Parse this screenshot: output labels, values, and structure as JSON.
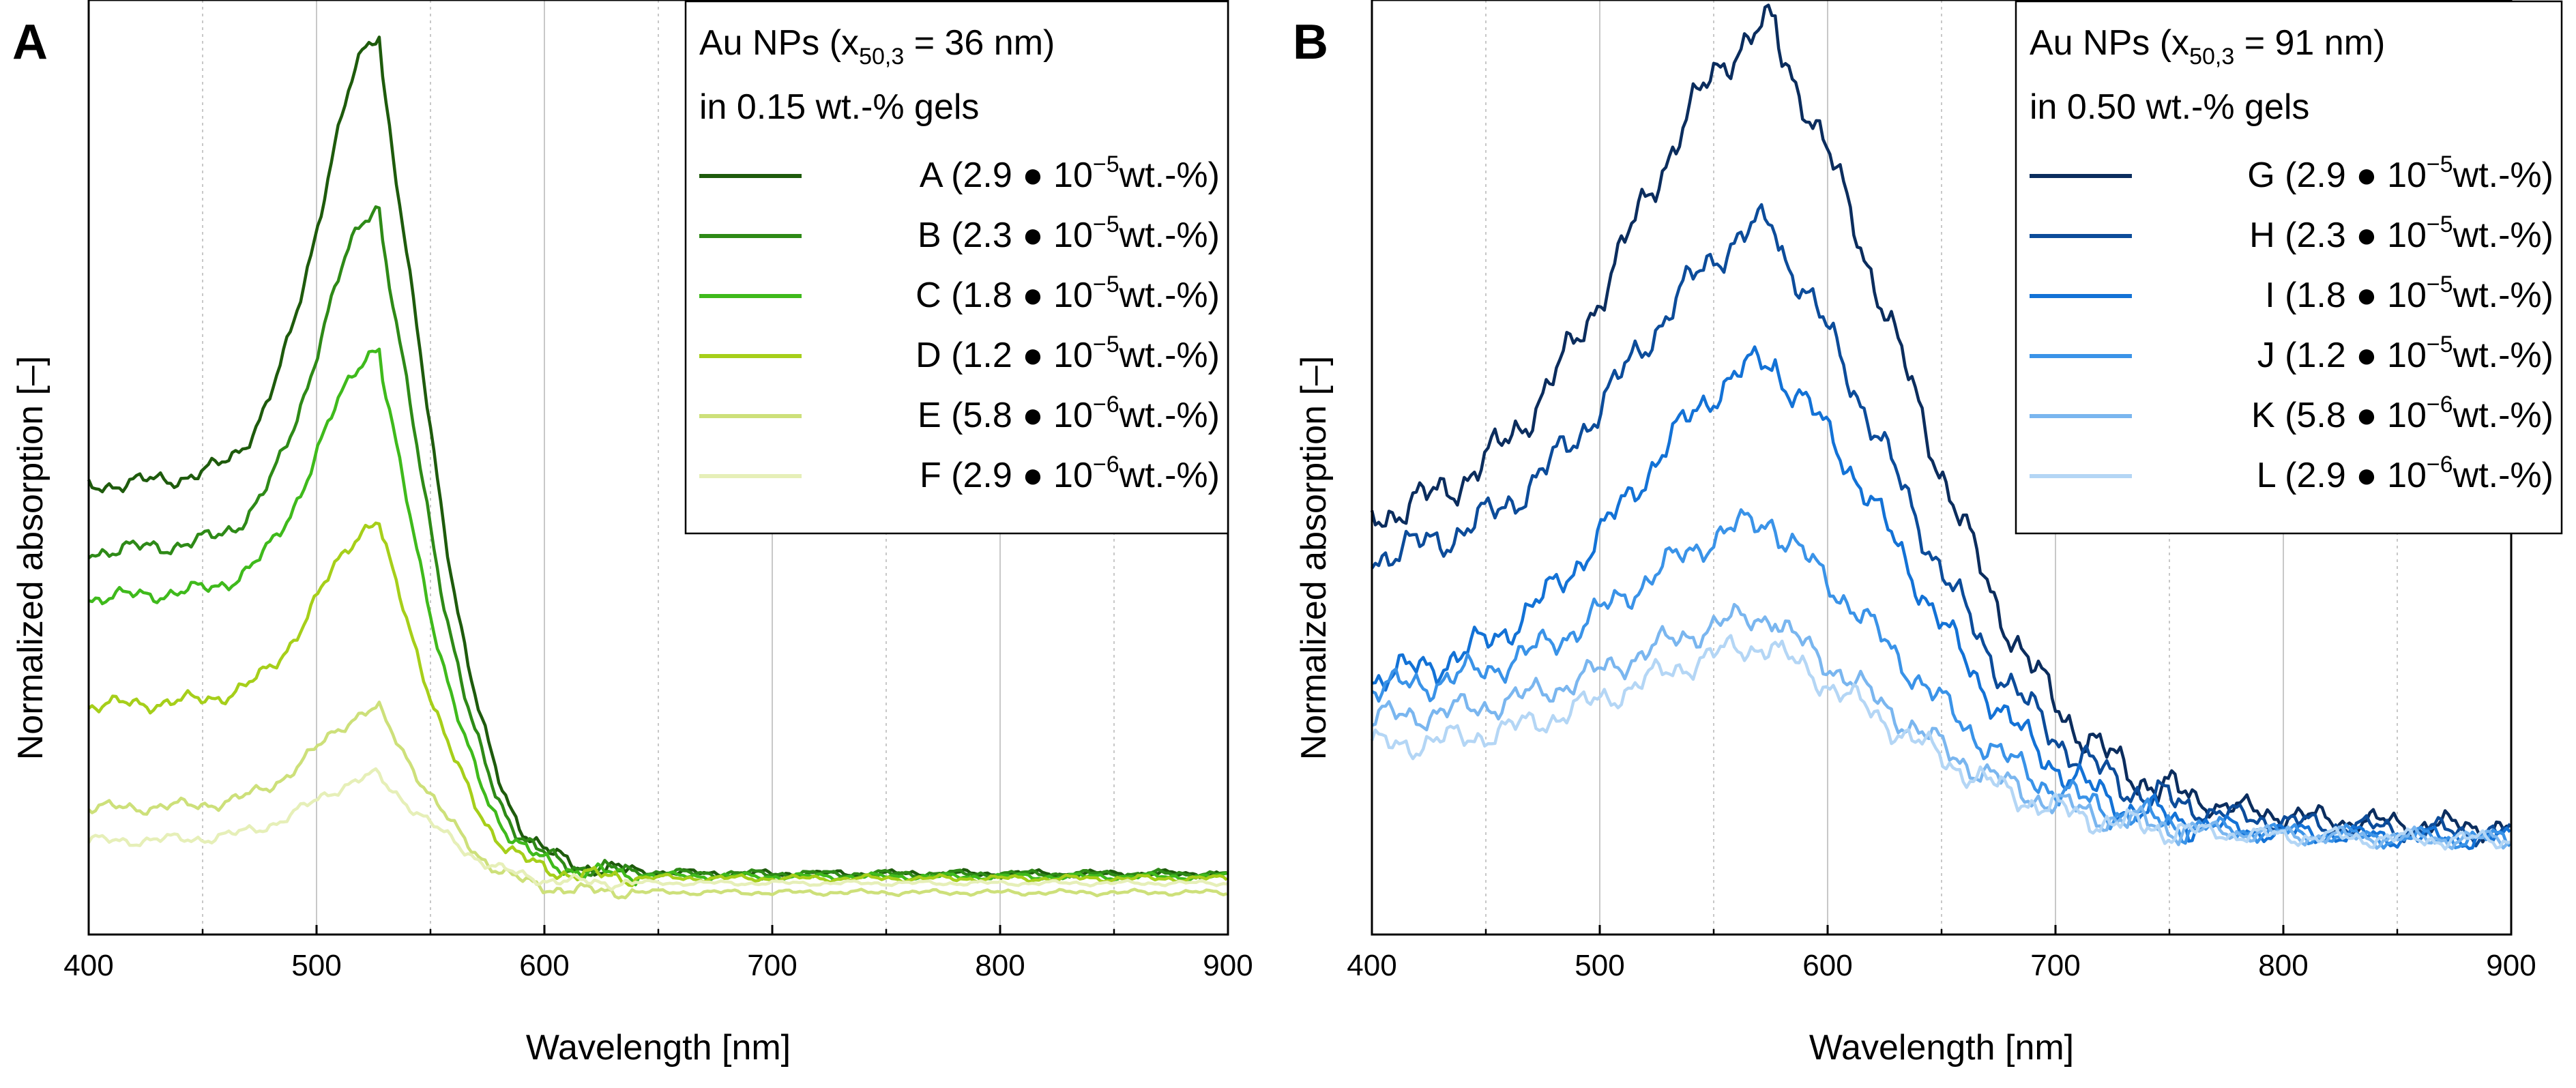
{
  "chart_data": [
    {
      "type": "line",
      "panel_label": "A",
      "xlabel": "Wavelength [nm]",
      "ylabel": "Normalized absorption [–]",
      "xlim": [
        400,
        900
      ],
      "ylim": [
        0,
        1
      ],
      "x_ticks": [
        "400",
        "500",
        "600",
        "700",
        "800",
        "900"
      ],
      "x_tick_values": [
        400,
        500,
        600,
        700,
        800,
        900
      ],
      "minor_grid_values": [
        450,
        550,
        650,
        750,
        850
      ],
      "y_ticks_visible": false,
      "legend": {
        "position": "top-right",
        "title_parts": [
          "Au NPs (x",
          "50,3",
          " = 36 nm)"
        ],
        "subtitle": "in 0.15 wt.-% gels"
      },
      "series": [
        {
          "name": "A",
          "label_prefix": "A (2.9 ● 10",
          "label_exp": "−5",
          "label_suffix": "wt.-%)",
          "color": "#1e5b0c",
          "base": 0.48,
          "peak": 0.94,
          "center": 528,
          "width": 26,
          "tail": 0.065,
          "noise": 0.012,
          "noise_phase": 0.3
        },
        {
          "name": "B",
          "label_prefix": "B (2.3 ● 10",
          "label_exp": "−5",
          "label_suffix": "wt.-%)",
          "color": "#2e8a17",
          "base": 0.41,
          "peak": 0.76,
          "center": 528,
          "width": 26,
          "tail": 0.065,
          "noise": 0.012,
          "noise_phase": 1.1
        },
        {
          "name": "C",
          "label_prefix": "C (1.8 ● 10",
          "label_exp": "−5",
          "label_suffix": "wt.-%)",
          "color": "#3fba1c",
          "base": 0.36,
          "peak": 0.61,
          "center": 528,
          "width": 26,
          "tail": 0.062,
          "noise": 0.011,
          "noise_phase": 2.0
        },
        {
          "name": "D",
          "label_prefix": "D (1.2 ● 10",
          "label_exp": "−5",
          "label_suffix": "wt.-%)",
          "color": "#a6cf1a",
          "base": 0.245,
          "peak": 0.43,
          "center": 528,
          "width": 26,
          "tail": 0.06,
          "noise": 0.011,
          "noise_phase": 2.7
        },
        {
          "name": "E",
          "label_prefix": "E (5.8 ● 10",
          "label_exp": "−6",
          "label_suffix": "wt.-%)",
          "color": "#cde07a",
          "base": 0.135,
          "peak": 0.235,
          "center": 528,
          "width": 27,
          "tail": 0.045,
          "noise": 0.009,
          "noise_phase": 3.5
        },
        {
          "name": "F",
          "label_prefix": "F (2.9 ● 10",
          "label_exp": "−6",
          "label_suffix": "wt.-%)",
          "color": "#e6efb8",
          "base": 0.1,
          "peak": 0.165,
          "center": 528,
          "width": 28,
          "tail": 0.055,
          "noise": 0.008,
          "noise_phase": 4.4
        }
      ]
    },
    {
      "type": "line",
      "panel_label": "B",
      "xlabel": "Wavelength [nm]",
      "ylabel": "Normalized absorption [–]",
      "xlim": [
        400,
        900
      ],
      "ylim": [
        0,
        1
      ],
      "x_ticks": [
        "400",
        "500",
        "600",
        "700",
        "800",
        "900"
      ],
      "x_tick_values": [
        400,
        500,
        600,
        700,
        800,
        900
      ],
      "minor_grid_values": [
        450,
        550,
        650,
        750,
        850
      ],
      "y_ticks_visible": false,
      "legend": {
        "position": "top-right",
        "title_parts": [
          "Au NPs (x",
          "50,3",
          " = 91 nm)"
        ],
        "subtitle": "in 0.50 wt.-% gels"
      },
      "series": [
        {
          "name": "G",
          "label_prefix": "G (2.9 ● 10",
          "label_exp": "−5",
          "label_suffix": "wt.-%)",
          "color": "#0b2d5e",
          "base": 0.44,
          "peak": 0.95,
          "center": 578,
          "width": 62,
          "tail": 0.11,
          "noise": 0.028,
          "noise_phase": 0.5
        },
        {
          "name": "H",
          "label_prefix": "H (2.3 ● 10",
          "label_exp": "−5",
          "label_suffix": "wt.-%)",
          "color": "#0c4c9a",
          "base": 0.4,
          "peak": 0.74,
          "center": 578,
          "width": 62,
          "tail": 0.105,
          "noise": 0.026,
          "noise_phase": 1.4
        },
        {
          "name": "I",
          "label_prefix": "I (1.8 ● 10",
          "label_exp": "−5",
          "label_suffix": "wt.-%)",
          "color": "#1372d6",
          "base": 0.27,
          "peak": 0.6,
          "center": 578,
          "width": 62,
          "tail": 0.1,
          "noise": 0.024,
          "noise_phase": 2.2
        },
        {
          "name": "J",
          "label_prefix": "J (1.2 ● 10",
          "label_exp": "−5",
          "label_suffix": "wt.-%)",
          "color": "#3a93e8",
          "base": 0.26,
          "peak": 0.43,
          "center": 578,
          "width": 62,
          "tail": 0.1,
          "noise": 0.022,
          "noise_phase": 3.1
        },
        {
          "name": "K",
          "label_prefix": "K (5.8 ● 10",
          "label_exp": "−6",
          "label_suffix": "wt.-%)",
          "color": "#7ab6ef",
          "base": 0.23,
          "peak": 0.33,
          "center": 578,
          "width": 62,
          "tail": 0.1,
          "noise": 0.02,
          "noise_phase": 3.9
        },
        {
          "name": "L",
          "label_prefix": "L (2.9 ● 10",
          "label_exp": "−6",
          "label_suffix": "wt.-%)",
          "color": "#b4d6f5",
          "base": 0.2,
          "peak": 0.3,
          "center": 578,
          "width": 62,
          "tail": 0.1,
          "noise": 0.02,
          "noise_phase": 4.7
        }
      ]
    }
  ]
}
